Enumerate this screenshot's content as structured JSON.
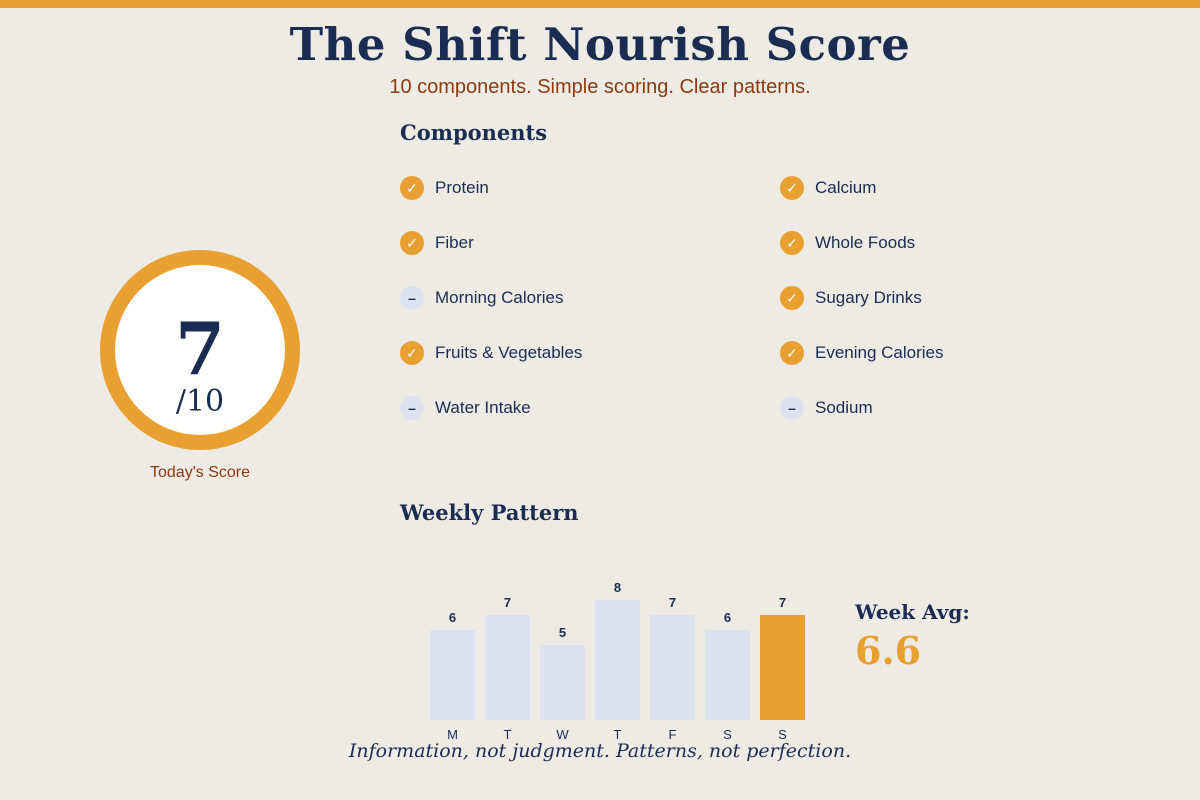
{
  "header": {
    "title": "The Shift Nourish Score",
    "subtitle": "10 components. Simple scoring. Clear patterns."
  },
  "score": {
    "value": "7",
    "max": "/10",
    "label": "Today's Score"
  },
  "components": {
    "heading": "Components",
    "items": [
      {
        "label": "Protein",
        "status": "met",
        "icon": "check-icon"
      },
      {
        "label": "Fiber",
        "status": "met",
        "icon": "check-icon"
      },
      {
        "label": "Morning Calories",
        "status": "unmet",
        "icon": "minus-icon"
      },
      {
        "label": "Fruits & Vegetables",
        "status": "met",
        "icon": "check-icon"
      },
      {
        "label": "Water Intake",
        "status": "unmet",
        "icon": "minus-icon"
      },
      {
        "label": "Calcium",
        "status": "met",
        "icon": "check-icon"
      },
      {
        "label": "Whole Foods",
        "status": "met",
        "icon": "check-icon"
      },
      {
        "label": "Sugary Drinks",
        "status": "met",
        "icon": "check-icon"
      },
      {
        "label": "Evening Calories",
        "status": "met",
        "icon": "check-icon"
      },
      {
        "label": "Sodium",
        "status": "unmet",
        "icon": "minus-icon"
      }
    ]
  },
  "weekly": {
    "heading": "Weekly Pattern",
    "avg_label": "Week Avg:",
    "avg_value": "6.6"
  },
  "chart_data": {
    "type": "bar",
    "categories": [
      "M",
      "T",
      "W",
      "T",
      "F",
      "S",
      "S"
    ],
    "values": [
      6,
      7,
      5,
      8,
      7,
      6,
      7
    ],
    "highlight_index": 6,
    "ylim": [
      0,
      10
    ]
  },
  "colors": {
    "accent": "#E8A030",
    "navy": "#1B2C52",
    "rust": "#8B3A12",
    "bar_default": "#DCE2EF",
    "background": "#EEEBE4"
  },
  "footer": {
    "text": "Information, not judgment. Patterns, not perfection."
  }
}
